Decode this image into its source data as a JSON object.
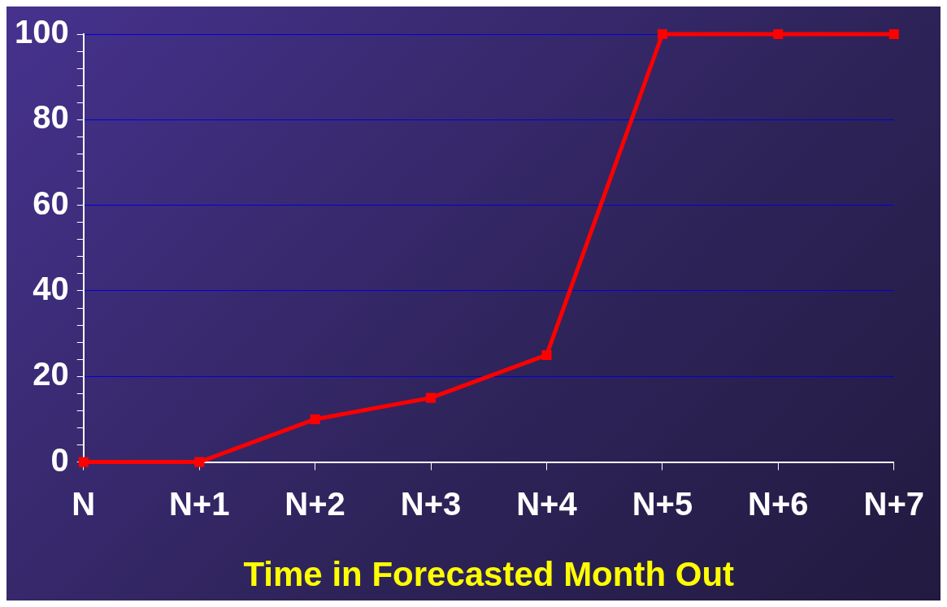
{
  "chart_data": {
    "type": "line",
    "xlabel": "Time in Forecasted Month Out",
    "categories": [
      "N",
      "N+1",
      "N+2",
      "N+3",
      "N+4",
      "N+5",
      "N+6",
      "N+7"
    ],
    "series": [
      {
        "color": "#ff0000",
        "values": [
          0,
          0,
          10,
          15,
          25,
          100,
          100,
          100
        ]
      }
    ],
    "ylim": [
      0,
      100
    ],
    "yticks": [
      0,
      {
        "value": 4,
        "label": null
      },
      {
        "value": 8,
        "label": null
      },
      {
        "value": 12,
        "label": null
      },
      {
        "value": 16,
        "label": null
      },
      20,
      {
        "value": 24,
        "label": null
      },
      {
        "value": 28,
        "label": null
      },
      {
        "value": 32,
        "label": null
      },
      {
        "value": 36,
        "label": null
      },
      40,
      {
        "value": 44,
        "label": null
      },
      {
        "value": 48,
        "label": null
      },
      {
        "value": 52,
        "label": null
      },
      {
        "value": 56,
        "label": null
      },
      60,
      {
        "value": 64,
        "label": null
      },
      {
        "value": 68,
        "label": null
      },
      {
        "value": 72,
        "label": null
      },
      {
        "value": 76,
        "label": null
      },
      80,
      {
        "value": 84,
        "label": null
      },
      {
        "value": 88,
        "label": null
      },
      {
        "value": 92,
        "label": null
      },
      {
        "value": 96,
        "label": null
      },
      100
    ],
    "grid": "y",
    "legend": false,
    "marker": "square",
    "line_style": "solid"
  }
}
